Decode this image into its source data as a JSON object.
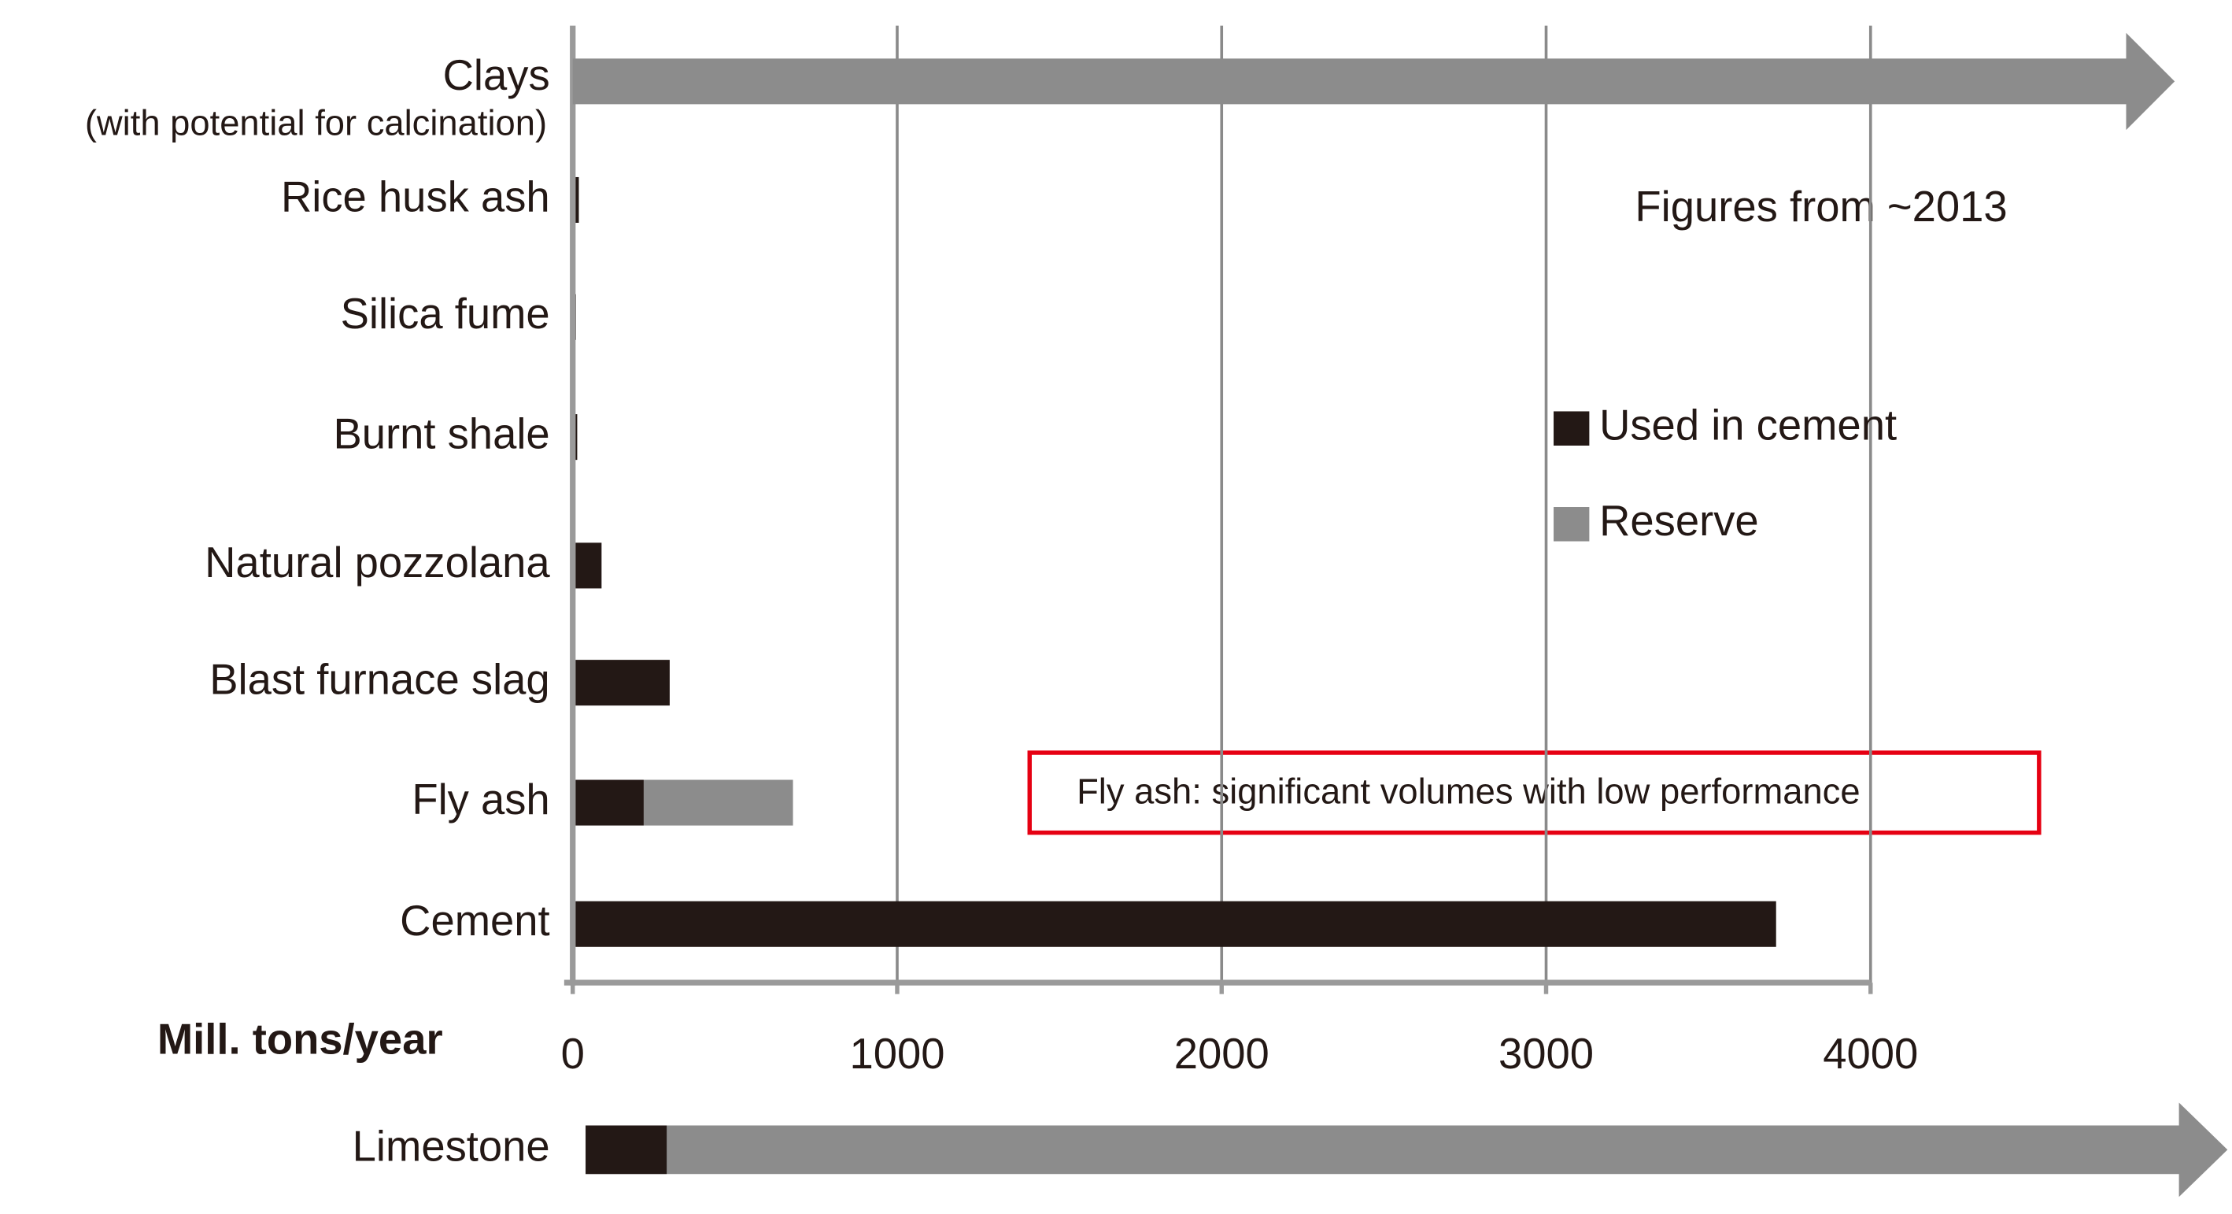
{
  "chart_data": {
    "type": "stacked-barh",
    "categories": [
      "Clays",
      "Rice husk ash",
      "Silica fume",
      "Burnt shale",
      "Natural pozzolana",
      "Blast furnace slag",
      "Fly ash",
      "Cement"
    ],
    "category_subtitles": [
      "(with potential for calcination)",
      null,
      null,
      null,
      null,
      null,
      null,
      null
    ],
    "open_ended": [
      true,
      false,
      false,
      false,
      false,
      false,
      false,
      false
    ],
    "series": [
      {
        "name": "Used in cement",
        "color": "#231815",
        "values": [
          null,
          10,
          1,
          5,
          80,
          290,
          210,
          3700
        ]
      },
      {
        "name": "Reserve",
        "color": "#8c8c8c",
        "values": [
          null,
          0,
          0,
          0,
          0,
          0,
          460,
          0
        ]
      }
    ],
    "extra_row": {
      "category": "Limestone",
      "used": 250,
      "open_ended": true
    },
    "xlabel": "Mill. tons/year",
    "xlim": [
      0,
      4000
    ],
    "xticks": [
      0,
      1000,
      2000,
      3000,
      4000
    ],
    "grid": true,
    "annotation": "Figures from ~2013",
    "callout": "Fly ash: significant volumes with low performance"
  }
}
